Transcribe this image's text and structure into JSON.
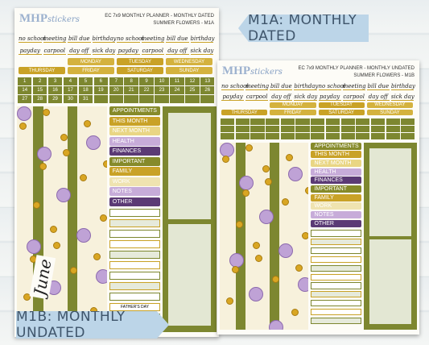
{
  "labels": {
    "top": "M1A: MONTHLY DATED",
    "bottom": "M1B: MONTHLY UNDATED"
  },
  "sheets": [
    {
      "logo_main": "MHP",
      "logo_script": "stickers",
      "title": "EC 7x9 MONTHLY PLANNER - MONTHLY DATED",
      "subtitle": "SUMMER FLOWERS - M1A",
      "words": [
        "no school",
        "meeting",
        "bill due",
        "birthday",
        "payday",
        "carpool",
        "day off",
        "sick day"
      ],
      "days": [
        "MONDAY",
        "TUESDAY",
        "WEDNESDAY",
        "THURSDAY",
        "FRIDAY",
        "SATURDAY",
        "SUNDAY"
      ],
      "dates": [
        1,
        2,
        3,
        4,
        5,
        6,
        7,
        8,
        9,
        10,
        11,
        12,
        13,
        14,
        15,
        16,
        17,
        18,
        19,
        20,
        21,
        22,
        23,
        24,
        25,
        26,
        27,
        28,
        29,
        30,
        31
      ],
      "headers": [
        "APPOINTMENTS",
        "THIS MONTH",
        "NEXT MONTH",
        "HEALTH",
        "FINANCES",
        "IMPORTANT",
        "FAMILY",
        "WORK",
        "NOTES",
        "OTHER"
      ],
      "month": "June",
      "holiday": "FATHER'S DAY"
    },
    {
      "logo_main": "MHP",
      "logo_script": "stickers",
      "title": "EC 7x9 MONTHLY PLANNER - MONTHLY UNDATED",
      "subtitle": "SUMMER FLOWERS - M1B",
      "words": [
        "no school",
        "meeting",
        "bill due",
        "birthday",
        "payday",
        "carpool",
        "day off",
        "sick day"
      ],
      "days": [
        "MONDAY",
        "TUESDAY",
        "WEDNESDAY",
        "THURSDAY",
        "FRIDAY",
        "SATURDAY",
        "SUNDAY"
      ],
      "headers": [
        "APPOINTMENTS",
        "THIS MONTH",
        "NEXT MONTH",
        "HEALTH",
        "FINANCES",
        "IMPORTANT",
        "FAMILY",
        "WORK",
        "NOTES",
        "OTHER"
      ]
    }
  ]
}
